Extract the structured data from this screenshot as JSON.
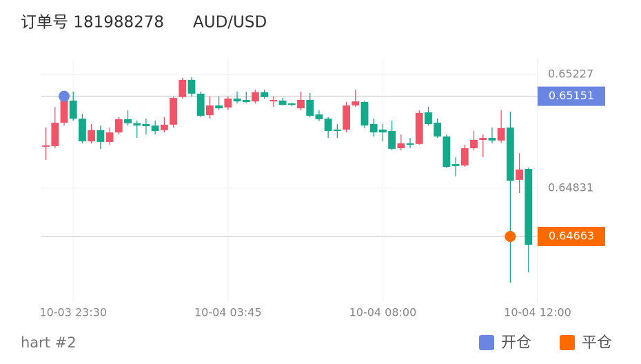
{
  "header": {
    "order": "订单号 181988278",
    "symbol": "AUD/USD"
  },
  "chart_data": {
    "type": "candlestick",
    "up_color": "#ef5469",
    "down_color": "#14a98b",
    "open": [
      0.64975,
      0.64977,
      0.65059,
      0.65136,
      0.65073,
      0.64994,
      0.65033,
      0.64992,
      0.65025,
      0.65071,
      0.65057,
      0.65054,
      0.65049,
      0.65033,
      0.65052,
      0.65148,
      0.65208,
      0.6516,
      0.65085,
      0.65119,
      0.65112,
      0.65143,
      0.65138,
      0.65133,
      0.65165,
      0.65133,
      0.65136,
      0.65126,
      0.65109,
      0.65138,
      0.65088,
      0.65073,
      0.65035,
      0.65035,
      0.65119,
      0.65131,
      0.65054,
      0.65035,
      0.6503,
      0.6497,
      0.64987,
      0.64985,
      0.65095,
      0.65059,
      0.65011,
      0.64915,
      0.6491,
      0.6497,
      0.64999,
      0.65006,
      0.64997,
      0.65042,
      0.6486,
      0.64898
    ],
    "high": [
      0.65042,
      0.65114,
      0.6515,
      0.65167,
      0.6509,
      0.65054,
      0.65049,
      0.65042,
      0.65078,
      0.65102,
      0.65066,
      0.65073,
      0.65066,
      0.65078,
      0.6515,
      0.65215,
      0.65217,
      0.65167,
      0.6515,
      0.6515,
      0.6515,
      0.65167,
      0.65167,
      0.65174,
      0.65174,
      0.6515,
      0.65145,
      0.65129,
      0.65167,
      0.65162,
      0.65102,
      0.65078,
      0.65054,
      0.65131,
      0.65174,
      0.65136,
      0.65073,
      0.65054,
      0.65066,
      0.65018,
      0.65006,
      0.65102,
      0.65114,
      0.65073,
      0.65018,
      0.64939,
      0.64982,
      0.6503,
      0.65018,
      0.65042,
      0.65102,
      0.65097,
      0.64953,
      0.64903
    ],
    "low": [
      0.64929,
      0.6497,
      0.65049,
      0.65066,
      0.64987,
      0.64987,
      0.64968,
      0.64982,
      0.65018,
      0.65049,
      0.65006,
      0.65018,
      0.65018,
      0.65025,
      0.65042,
      0.65143,
      0.6515,
      0.65078,
      0.65073,
      0.65102,
      0.65102,
      0.65126,
      0.65126,
      0.65126,
      0.65143,
      0.65114,
      0.65119,
      0.65117,
      0.65102,
      0.65078,
      0.65064,
      0.65006,
      0.65006,
      0.65025,
      0.65114,
      0.6504,
      0.65011,
      0.64994,
      0.64963,
      0.64963,
      0.6497,
      0.64982,
      0.65049,
      0.65006,
      0.64901,
      0.64872,
      0.64905,
      0.64963,
      0.64939,
      0.64987,
      0.64989,
      0.64502,
      0.64814,
      0.64538
    ],
    "close": [
      0.6498,
      0.65059,
      0.65136,
      0.65073,
      0.64994,
      0.65033,
      0.64992,
      0.65025,
      0.65071,
      0.65057,
      0.65049,
      0.65047,
      0.6503,
      0.65052,
      0.65145,
      0.65208,
      0.6516,
      0.65083,
      0.65119,
      0.65109,
      0.65143,
      0.65133,
      0.65131,
      0.65165,
      0.65148,
      0.65138,
      0.65121,
      0.65121,
      0.65138,
      0.65083,
      0.65071,
      0.6503,
      0.6503,
      0.65119,
      0.65133,
      0.65049,
      0.65025,
      0.65025,
      0.64968,
      0.64987,
      0.64982,
      0.65093,
      0.65054,
      0.65011,
      0.64905,
      0.64908,
      0.6497,
      0.64999,
      0.65006,
      0.64997,
      0.6504,
      0.64857,
      0.64896,
      0.64634
    ],
    "ylim": [
      0.64435,
      0.65282
    ],
    "yticks": [
      0.65227,
      0.64831
    ],
    "xlim": [
      -0.5,
      54
    ],
    "xticks": [
      {
        "value": 3,
        "label": "10-03 23:30"
      },
      {
        "value": 20,
        "label": "10-04 03:45"
      },
      {
        "value": 37,
        "label": "10-04 08:00"
      },
      {
        "value": 54,
        "label": "10-04 12:00"
      }
    ],
    "markers": [
      {
        "name": "开仓",
        "color": "#6b86e0",
        "x": 2,
        "value": 0.65151
      },
      {
        "name": "平仓",
        "color": "#ff6a00",
        "x": 51,
        "value": 0.64663
      }
    ],
    "grid": true
  },
  "footer": "hart #2"
}
